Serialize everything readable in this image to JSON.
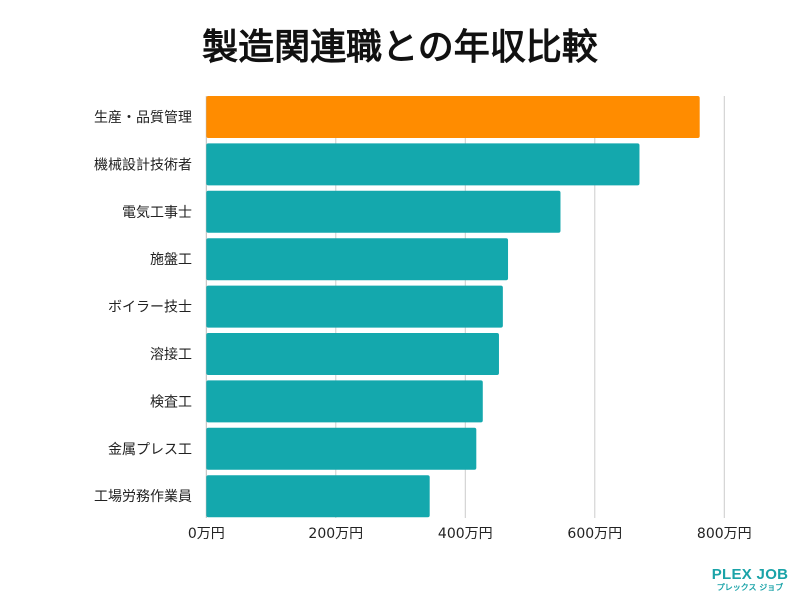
{
  "chart_data": {
    "type": "bar",
    "orientation": "horizontal",
    "title": "製造関連職との年収比較",
    "categories": [
      "生産・品質管理",
      "機械設計技術者",
      "電気工事士",
      "施盤工",
      "ボイラー技士",
      "溶接工",
      "検査工",
      "金属プレス工",
      "工場労務作業員"
    ],
    "values": [
      762,
      669,
      547,
      466,
      458,
      452,
      427,
      417,
      345
    ],
    "unit": "万円",
    "xlim": [
      0,
      800
    ],
    "xticks": [
      "0万円",
      "200万円",
      "400万円",
      "600万円",
      "800万円"
    ],
    "grid": true,
    "colors": {
      "highlight": "#ff8c00",
      "default": "#14a8ad",
      "grid": "#cccccc"
    },
    "highlight_index": 0
  },
  "logo": {
    "main": "PLEX JOB",
    "sub": "プレックス ジョブ"
  }
}
